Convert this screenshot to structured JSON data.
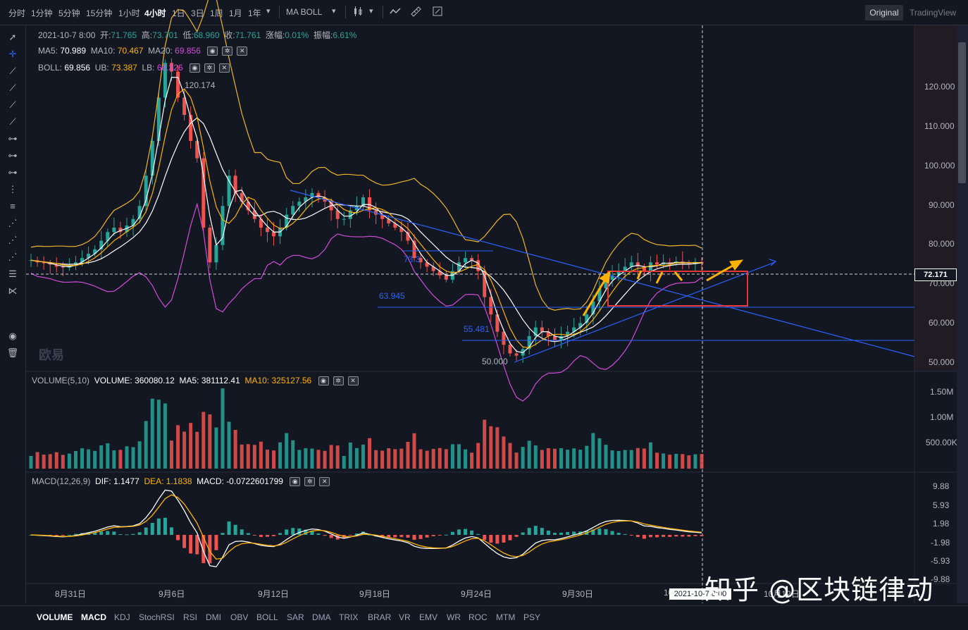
{
  "toolbar": {
    "intervals": [
      "分时",
      "1分钟",
      "5分钟",
      "15分钟",
      "1小时",
      "4小时",
      "1日",
      "3日",
      "1周",
      "1月",
      "1年"
    ],
    "active_interval": "4小时",
    "indicators_label": "MA  BOLL",
    "original_label": "Original",
    "tradingview_label": "TradingView"
  },
  "legend_main": {
    "datetime": "2021-10-7 8:00",
    "open_k": "开:",
    "open_v": "71.765",
    "high_k": "高:",
    "high_v": "73.701",
    "low_k": "低:",
    "low_v": "68.960",
    "close_k": "收:",
    "close_v": "71.761",
    "chg_k": "涨幅:",
    "chg_v": "0.01%",
    "amp_k": "振幅:",
    "amp_v": "6.61%"
  },
  "legend_ma": {
    "ma5_k": "MA5:",
    "ma5_v": "70.989",
    "ma10_k": "MA10:",
    "ma10_v": "70.467",
    "ma20_k": "MA20:",
    "ma20_v": "69.856"
  },
  "legend_boll": {
    "boll_k": "BOLL:",
    "boll_v": "69.856",
    "ub_k": "UB:",
    "ub_v": "73.387",
    "lb_k": "LB:",
    "lb_v": "66.326"
  },
  "legend_vol": {
    "name": "VOLUME(5,10)",
    "vol_k": "VOLUME:",
    "vol_v": "360080.12",
    "ma5_k": "MA5:",
    "ma5_v": "381112.41",
    "ma10_k": "MA10:",
    "ma10_v": "325127.56"
  },
  "legend_macd": {
    "name": "MACD(12,26,9)",
    "dif_k": "DIF:",
    "dif_v": "1.1477",
    "dea_k": "DEA:",
    "dea_v": "1.1838",
    "macd_k": "MACD:",
    "macd_v": "-0.0722601799"
  },
  "price_axis": [
    "120.000",
    "110.000",
    "100.000",
    "90.000",
    "80.000",
    "70.000",
    "60.000",
    "50.000"
  ],
  "volume_axis": [
    "1.50M",
    "1.00M",
    "500.00K"
  ],
  "macd_axis": [
    "9.88",
    "5.93",
    "1.98",
    "-1.98",
    "-5.93",
    "-9.88"
  ],
  "time_axis": [
    "8月31日",
    "9月6日",
    "9月12日",
    "9月18日",
    "9月24日",
    "9月30日",
    "10",
    "10月12日"
  ],
  "current_price": "72.171",
  "crosshair_time": "2021-10-7 8:00",
  "annotations": {
    "high": "120.174",
    "a1": "73.3",
    "s1": "63.945",
    "s2": "55.481",
    "low": "50.000"
  },
  "bottom_tabs": [
    "VOLUME",
    "MACD",
    "KDJ",
    "StochRSI",
    "RSI",
    "DMI",
    "OBV",
    "BOLL",
    "SAR",
    "DMA",
    "TRIX",
    "BRAR",
    "VR",
    "EMV",
    "WR",
    "ROC",
    "MTM",
    "PSY"
  ],
  "active_bottom_tabs": [
    "VOLUME",
    "MACD"
  ],
  "watermark": "知乎 @区块链律动",
  "faint_logo": "欧易",
  "colors": {
    "up": "#26a69a",
    "down": "#ef5350",
    "ma5": "#ffffff",
    "ma10": "#ffb300",
    "ma20": "#d24bd8",
    "boll_band": "#f0b429",
    "trend": "#2962ff",
    "highlight_box": "#e53935",
    "arrow": "#ffb300"
  },
  "chart_data": {
    "type": "candlestick",
    "interval": "4小时",
    "ylim": [
      48,
      126
    ],
    "close_approx": [
      72.5,
      72,
      71.8,
      71.5,
      71,
      70.8,
      71.2,
      72,
      73,
      74,
      75,
      77,
      79,
      80,
      79,
      80.5,
      82,
      85,
      92,
      100,
      110,
      118,
      116,
      110,
      106,
      100,
      96,
      80,
      72,
      76,
      85,
      92,
      88,
      86,
      84,
      82,
      80,
      79,
      78,
      80,
      83,
      85,
      86,
      87,
      88,
      87,
      86,
      84,
      82,
      82,
      84,
      85,
      87,
      84,
      83,
      82,
      81,
      80,
      79,
      77,
      73,
      72,
      71,
      70,
      69,
      68,
      70,
      72,
      73,
      72.5,
      70,
      64,
      60,
      56,
      53,
      51,
      50.5,
      52,
      55,
      57,
      56,
      55,
      54,
      55,
      56,
      57,
      58,
      60,
      63,
      66,
      68,
      69,
      70,
      71,
      72,
      71,
      70,
      72,
      71.5,
      72,
      71.8,
      72.2,
      71.9,
      71.8,
      72.1,
      71.8
    ],
    "annotated_high": 120.174,
    "annotated_low": 50.0,
    "support_levels": [
      63.945,
      55.481
    ],
    "current_price": 72.171
  }
}
